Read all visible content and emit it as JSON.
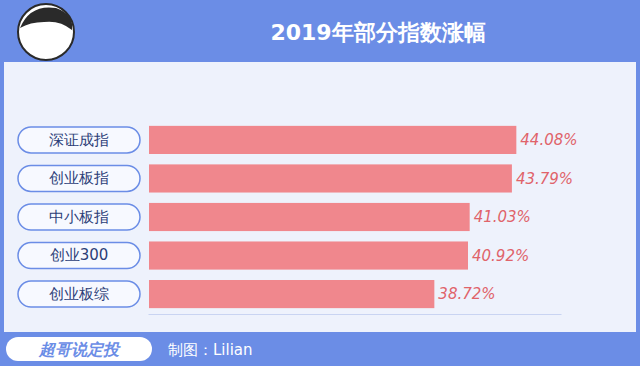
{
  "chart_data": {
    "type": "bar",
    "orientation": "horizontal",
    "title": "2019年部分指数涨幅",
    "categories": [
      "深证成指",
      "创业板指",
      "中小板指",
      "创业300",
      "创业板综"
    ],
    "values": [
      44.08,
      43.79,
      41.03,
      40.92,
      38.72
    ],
    "value_labels": [
      "44.08%",
      "43.79%",
      "41.03%",
      "40.92%",
      "38.72%"
    ],
    "color": "#f0878d",
    "xlim": [
      20,
      47
    ],
    "xticks": [],
    "data_labels": true,
    "tick_labels": "y",
    "footer": {
      "brand": "超哥说定投",
      "credit": "制图：Lilian"
    }
  }
}
